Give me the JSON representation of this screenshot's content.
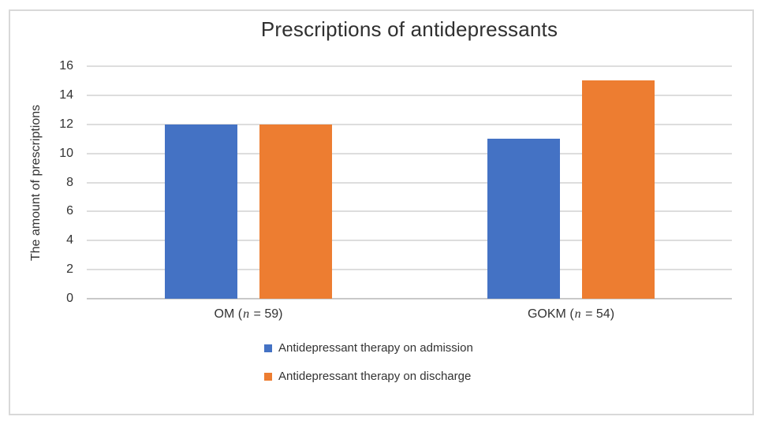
{
  "colors": {
    "series_admission": "#4472C4",
    "series_discharge": "#ED7D31",
    "gridline": "#DDDDDD",
    "axis_line": "#C9C9C9",
    "frame_border": "#D9D9D9",
    "text": "#333333",
    "background": "#FFFFFF"
  },
  "chart_data": {
    "type": "bar",
    "title": "Prescriptions of antidepressants",
    "xlabel": "",
    "ylabel": "The amount of prescriptions",
    "ylim": [
      0,
      16
    ],
    "ytick_step": 2,
    "yticks": [
      0,
      2,
      4,
      6,
      8,
      10,
      12,
      14,
      16
    ],
    "grid": true,
    "legend_position": "bottom",
    "categories": [
      "OM (n = 59)",
      "GOKM (n = 54)"
    ],
    "category_label_parts": [
      {
        "key": "om",
        "pre": "OM (",
        "var": "n",
        "post": " = 59)"
      },
      {
        "key": "gokm",
        "pre": "GOKM (",
        "var": "n",
        "post": " = 54)"
      }
    ],
    "series": [
      {
        "key": "admission",
        "name": "Antidepressant therapy on admission",
        "color": "#4472C4",
        "values": [
          12,
          11
        ]
      },
      {
        "key": "discharge",
        "name": "Antidepressant therapy on discharge",
        "color": "#ED7D31",
        "values": [
          12,
          15
        ]
      }
    ]
  }
}
